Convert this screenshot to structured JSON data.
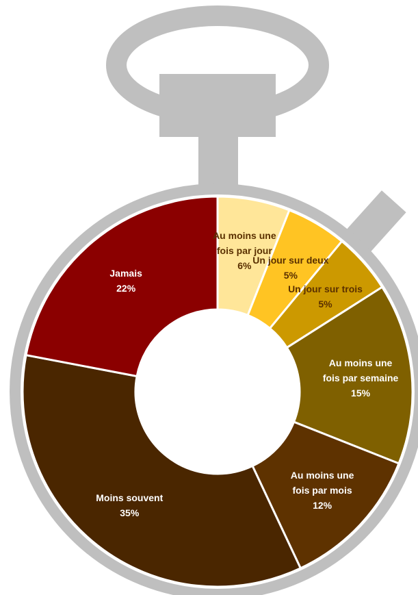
{
  "chart_data": {
    "type": "donut",
    "categories": [
      "Au moins une fois par jour",
      "Un jour sur deux",
      "Un jour sur trois",
      "Au moins une fois par semaine",
      "Au moins une fois par mois",
      "Moins souvent",
      "Jamais"
    ],
    "values": [
      6,
      5,
      5,
      15,
      12,
      35,
      22
    ],
    "value_labels": [
      "6%",
      "5%",
      "5%",
      "15%",
      "12%",
      "35%",
      "22%"
    ],
    "colors": [
      "#FFE699",
      "#FFC423",
      "#CC9900",
      "#7F6000",
      "#5E3200",
      "#4A2600",
      "#8B0000"
    ]
  }
}
